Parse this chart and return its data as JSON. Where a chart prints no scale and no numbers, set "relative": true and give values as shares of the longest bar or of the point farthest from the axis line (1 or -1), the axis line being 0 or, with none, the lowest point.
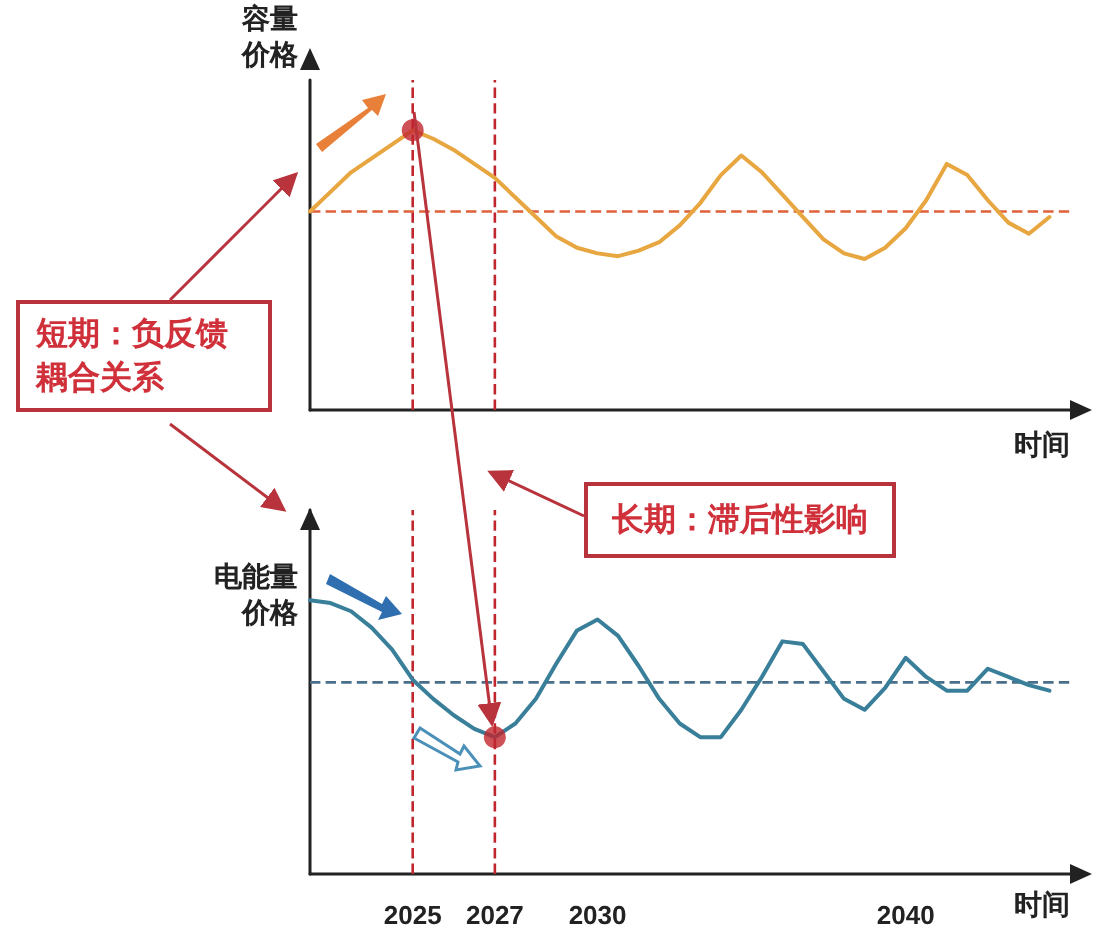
{
  "chart_data": [
    {
      "type": "line",
      "relative": true,
      "ylabel": "容量价格",
      "xlabel": "时间",
      "tick_labels": false,
      "grid": false,
      "line_style": "solid",
      "marker": "none",
      "categories": [
        null,
        null,
        null,
        null,
        null,
        "2025",
        null,
        null,
        null,
        "2027",
        null,
        null,
        null,
        null,
        "2030",
        null,
        null,
        null,
        null,
        null,
        null,
        null,
        null,
        null,
        null,
        null,
        null,
        null,
        null,
        "2040",
        null,
        null,
        null,
        null,
        null,
        null,
        null,
        null
      ],
      "series": [
        {
          "color": "#e8a640",
          "values": [
            0.71,
            0.78,
            0.85,
            0.9,
            0.95,
            1,
            0.97,
            0.93,
            0.88,
            0.83,
            0.76,
            0.69,
            0.62,
            0.58,
            0.56,
            0.55,
            0.57,
            0.6,
            0.66,
            0.74,
            0.84,
            0.91,
            0.85,
            0.77,
            0.69,
            0.61,
            0.56,
            0.54,
            0.58,
            0.65,
            0.75,
            0.88,
            0.84,
            0.75,
            0.67,
            0.63,
            0.69,
            null
          ]
        },
        {
          "type": "scatter",
          "marker": "circle",
          "color": "#c0262d",
          "values": [
            null,
            null,
            null,
            null,
            null,
            1,
            null,
            null,
            null,
            null,
            null,
            null,
            null,
            null,
            null,
            null,
            null,
            null,
            null,
            null,
            null,
            null,
            null,
            null,
            null,
            null,
            null,
            null,
            null,
            null,
            null,
            null,
            null,
            null,
            null,
            null,
            null,
            null
          ]
        }
      ],
      "ref_lines": [
        {
          "axis": "y",
          "value": 0.71,
          "color": "#e0603a",
          "line_style": "dashed"
        },
        {
          "axis": "x",
          "value": "2025",
          "color": "#c0262d",
          "line_style": "dashed"
        },
        {
          "axis": "x",
          "value": "2027",
          "color": "#c0262d",
          "line_style": "dashed"
        }
      ],
      "annotations": [
        "短期：负反馈耦合关系"
      ]
    },
    {
      "type": "line",
      "relative": true,
      "ylabel": "电能量价格",
      "xlabel": "时间",
      "tick_labels": "x",
      "grid": false,
      "line_style": "solid",
      "marker": "none",
      "categories": [
        null,
        null,
        null,
        null,
        null,
        "2025",
        null,
        null,
        null,
        "2027",
        null,
        null,
        null,
        null,
        "2030",
        null,
        null,
        null,
        null,
        null,
        null,
        null,
        null,
        null,
        null,
        null,
        null,
        null,
        null,
        "2040",
        null,
        null,
        null,
        null,
        null,
        null,
        null,
        null
      ],
      "series": [
        {
          "color": "#3a7f9a",
          "values": [
            1,
            0.99,
            0.96,
            0.9,
            0.82,
            0.71,
            0.64,
            0.58,
            0.53,
            0.5,
            0.55,
            0.64,
            0.77,
            0.89,
            0.93,
            0.87,
            0.76,
            0.64,
            0.55,
            0.5,
            0.5,
            0.6,
            0.72,
            0.85,
            0.84,
            0.74,
            0.64,
            0.6,
            0.68,
            0.79,
            0.72,
            0.67,
            0.67,
            0.75,
            0.72,
            0.69,
            0.67,
            null
          ]
        },
        {
          "type": "scatter",
          "marker": "circle",
          "color": "#c0262d",
          "values": [
            null,
            null,
            null,
            null,
            null,
            null,
            null,
            null,
            null,
            0.5,
            null,
            null,
            null,
            null,
            null,
            null,
            null,
            null,
            null,
            null,
            null,
            null,
            null,
            null,
            null,
            null,
            null,
            null,
            null,
            null,
            null,
            null,
            null,
            null,
            null,
            null,
            null,
            null
          ]
        }
      ],
      "ref_lines": [
        {
          "axis": "y",
          "value": 0.7,
          "color": "#4a6f8a",
          "line_style": "dashed"
        },
        {
          "axis": "x",
          "value": "2025",
          "color": "#c0262d",
          "line_style": "dashed"
        },
        {
          "axis": "x",
          "value": "2027",
          "color": "#c0262d",
          "line_style": "dashed"
        }
      ],
      "annotations": [
        "长期：滞后性影响"
      ]
    }
  ]
}
